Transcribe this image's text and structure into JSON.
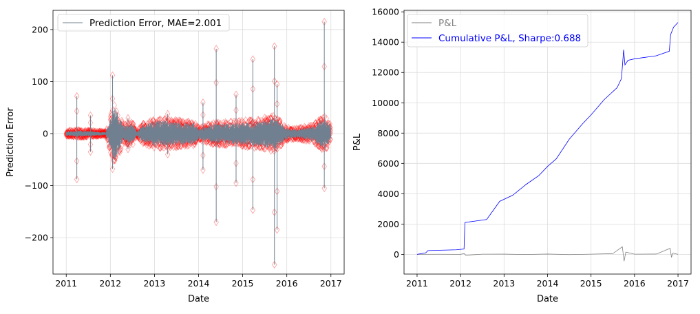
{
  "colors": {
    "errorLine": "#708090",
    "errorMarker": "#ff0000",
    "pnl": "#808080",
    "cumulative": "#0000ff",
    "grid": "#dcdcdc"
  },
  "chart_data": [
    {
      "type": "line",
      "xlabel": "Date",
      "ylabel": "Prediction Error",
      "xlim": [
        2010.7,
        2017.3
      ],
      "ylim": [
        -270,
        237
      ],
      "xticks": [
        2011,
        2012,
        2013,
        2014,
        2015,
        2016,
        2017
      ],
      "xtick_labels": [
        "2011",
        "2012",
        "2013",
        "2014",
        "2015",
        "2016",
        "2017"
      ],
      "yticks": [
        -200,
        -100,
        0,
        100,
        200
      ],
      "ytick_labels": [
        "−200",
        "−100",
        "0",
        "100",
        "200"
      ],
      "grid": true,
      "legend_placement": "top-left",
      "series": [
        {
          "name": "Prediction Error, MAE=2.001",
          "style": "line with hollow diamond markers",
          "band_envelope": {
            "x": [
              2011.0,
              2011.25,
              2011.5,
              2011.9,
              2012.0,
              2012.1,
              2012.3,
              2012.5,
              2012.6,
              2012.7,
              2013.0,
              2013.3,
              2013.6,
              2013.9,
              2014.0,
              2014.3,
              2014.7,
              2015.0,
              2015.4,
              2015.7,
              2015.8,
              2015.95,
              2016.2,
              2016.6,
              2016.85,
              2017.0
            ],
            "upper": [
              4,
              6,
              5,
              3,
              30,
              55,
              15,
              20,
              3,
              15,
              25,
              25,
              22,
              20,
              10,
              18,
              20,
              22,
              25,
              30,
              28,
              12,
              8,
              15,
              30,
              15
            ],
            "lower": [
              -4,
              -6,
              -5,
              -3,
              -30,
              -55,
              -15,
              -20,
              -3,
              -15,
              -25,
              -25,
              -22,
              -20,
              -10,
              -18,
              -20,
              -22,
              -25,
              -30,
              -28,
              -12,
              -8,
              -15,
              -30,
              -15
            ]
          },
          "spikes": [
            {
              "x": 2011.24,
              "high": 72,
              "low": -88
            },
            {
              "x": 2011.55,
              "high": 35,
              "low": -35
            },
            {
              "x": 2012.05,
              "high": 112,
              "low": -68
            },
            {
              "x": 2012.4,
              "high": 30,
              "low": -30
            },
            {
              "x": 2013.3,
              "high": 38,
              "low": -40
            },
            {
              "x": 2014.1,
              "high": 60,
              "low": -70
            },
            {
              "x": 2014.4,
              "high": 163,
              "low": -170
            },
            {
              "x": 2014.85,
              "high": 75,
              "low": -95
            },
            {
              "x": 2015.23,
              "high": 143,
              "low": -147
            },
            {
              "x": 2015.72,
              "high": 168,
              "low": -252
            },
            {
              "x": 2015.78,
              "high": 95,
              "low": -185
            },
            {
              "x": 2016.85,
              "high": 215,
              "low": -105
            }
          ]
        }
      ]
    },
    {
      "type": "line",
      "xlabel": "Date",
      "ylabel": "P&L",
      "xlim": [
        2010.7,
        2017.3
      ],
      "ylim": [
        -1300,
        16100
      ],
      "xticks": [
        2011,
        2012,
        2013,
        2014,
        2015,
        2016,
        2017
      ],
      "xtick_labels": [
        "2011",
        "2012",
        "2013",
        "2014",
        "2015",
        "2016",
        "2017"
      ],
      "yticks": [
        0,
        2000,
        4000,
        6000,
        8000,
        10000,
        12000,
        14000,
        16000
      ],
      "ytick_labels": [
        "0",
        "2000",
        "4000",
        "6000",
        "8000",
        "10000",
        "12000",
        "14000",
        "16000"
      ],
      "grid": true,
      "legend_placement": "top-left",
      "series": [
        {
          "name": "P&L",
          "x": [
            2011.0,
            2011.5,
            2012.0,
            2012.08,
            2012.12,
            2012.5,
            2013.0,
            2013.5,
            2014.0,
            2014.5,
            2015.0,
            2015.5,
            2015.72,
            2015.76,
            2015.8,
            2016.0,
            2016.5,
            2016.82,
            2016.85,
            2016.88,
            2017.0
          ],
          "values": [
            0,
            5,
            0,
            60,
            -60,
            10,
            15,
            -10,
            20,
            -15,
            10,
            50,
            500,
            -450,
            150,
            10,
            20,
            400,
            -200,
            80,
            0
          ]
        },
        {
          "name": "Cumulative P&L, Sharpe:0.688",
          "x": [
            2011.0,
            2011.2,
            2011.25,
            2011.9,
            2012.08,
            2012.1,
            2012.6,
            2012.9,
            2013.2,
            2013.5,
            2013.8,
            2014.0,
            2014.2,
            2014.5,
            2014.8,
            2015.0,
            2015.3,
            2015.6,
            2015.7,
            2015.75,
            2015.78,
            2015.85,
            2016.0,
            2016.5,
            2016.8,
            2016.83,
            2016.9,
            2017.0
          ],
          "values": [
            0,
            100,
            250,
            300,
            350,
            2100,
            2300,
            3500,
            3900,
            4600,
            5200,
            5800,
            6300,
            7600,
            8600,
            9200,
            10200,
            11000,
            11600,
            13500,
            12500,
            12800,
            12900,
            13100,
            13400,
            14500,
            15000,
            15300
          ]
        }
      ]
    }
  ]
}
